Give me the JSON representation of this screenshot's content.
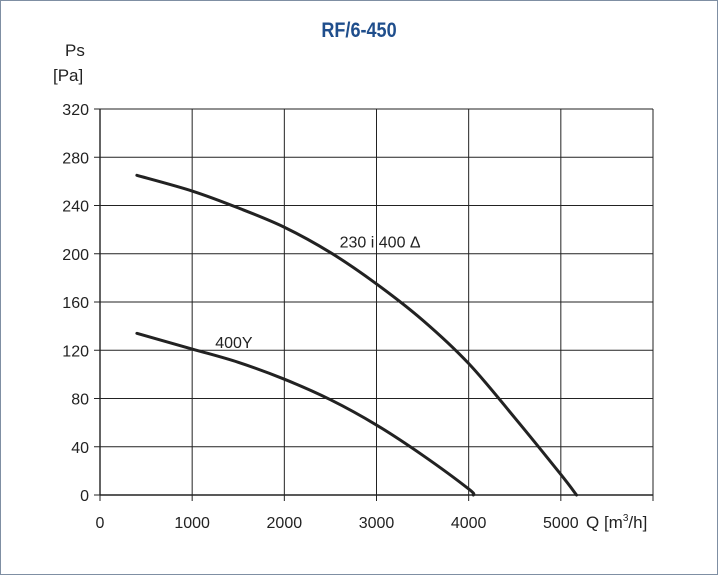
{
  "chart_data": {
    "type": "line",
    "title": "RF/6-450",
    "ylabel_line1": "Ps",
    "ylabel_line2": "[Pa]",
    "xlabel_prefix": "Q [m",
    "xlabel_sup": "3",
    "xlabel_suffix": "/h]",
    "xlim": [
      0,
      6000
    ],
    "ylim": [
      0,
      320
    ],
    "xticks": [
      0,
      1000,
      2000,
      3000,
      4000,
      5000
    ],
    "xtick_labels": [
      "0",
      "1000",
      "2000",
      "3000",
      "4000",
      "5000"
    ],
    "yticks": [
      0,
      40,
      80,
      120,
      160,
      200,
      240,
      280,
      320
    ],
    "ytick_labels": [
      "0",
      "40",
      "80",
      "120",
      "160",
      "200",
      "240",
      "280",
      "320"
    ],
    "grid": true,
    "series": [
      {
        "name": "230 i 400 Δ",
        "x": [
          400,
          1000,
          1500,
          2000,
          2500,
          3000,
          3500,
          4000,
          4500,
          5000,
          5170
        ],
        "y": [
          265,
          252,
          238,
          222,
          201,
          175,
          145,
          109,
          64,
          17,
          0
        ]
      },
      {
        "name": "400Y",
        "x": [
          400,
          1000,
          1500,
          2000,
          2500,
          3000,
          3500,
          4000,
          4050
        ],
        "y": [
          134,
          121,
          110,
          96,
          79,
          58,
          33,
          5,
          0
        ]
      }
    ],
    "colors": {
      "title": "#1f4e8c",
      "curve": "#222222",
      "grid": "#222222",
      "frame": "#7f8fa3"
    }
  }
}
